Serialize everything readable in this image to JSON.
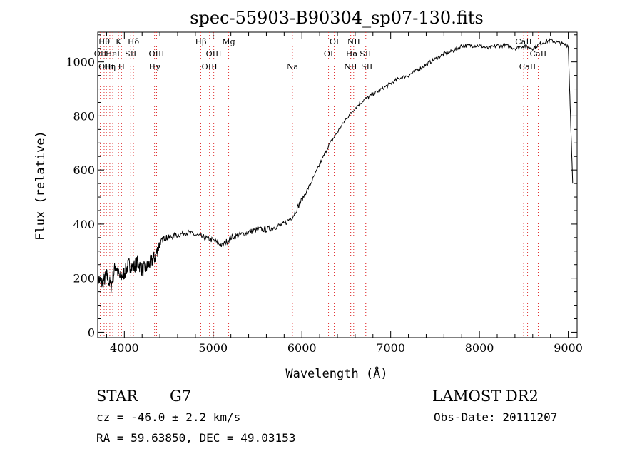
{
  "chart_data": {
    "type": "line",
    "title": "spec-55903-B90304_sp07-130.fits",
    "xlabel": "Wavelength (Å)",
    "ylabel": "Flux (relative)",
    "xlim": [
      3700,
      9100
    ],
    "ylim": [
      -20,
      1110
    ],
    "x_ticks": [
      4000,
      5000,
      6000,
      7000,
      8000,
      9000
    ],
    "y_ticks": [
      0,
      200,
      400,
      600,
      800,
      1000
    ],
    "grid": false,
    "series": [
      {
        "x": [
          3700,
          3750,
          3800,
          3850,
          3900,
          3950,
          4000,
          4050,
          4100,
          4150,
          4200,
          4250,
          4300,
          4350,
          4400,
          4450,
          4500,
          4600,
          4700,
          4800,
          4900,
          5000,
          5100,
          5200,
          5300,
          5400,
          5500,
          5600,
          5700,
          5800,
          5900,
          6000,
          6100,
          6200,
          6300,
          6400,
          6500,
          6600,
          6700,
          6800,
          6900,
          7000,
          7100,
          7200,
          7300,
          7400,
          7500,
          7600,
          7700,
          7800,
          7900,
          8000,
          8100,
          8200,
          8300,
          8400,
          8500,
          8600,
          8700,
          8800,
          8900,
          9000,
          9050
        ],
        "y": [
          200,
          180,
          210,
          170,
          250,
          200,
          220,
          250,
          240,
          260,
          230,
          240,
          260,
          280,
          330,
          350,
          350,
          360,
          370,
          360,
          350,
          340,
          320,
          350,
          360,
          370,
          380,
          380,
          390,
          400,
          430,
          490,
          550,
          620,
          690,
          740,
          790,
          830,
          860,
          880,
          900,
          920,
          940,
          950,
          970,
          990,
          1010,
          1030,
          1040,
          1060,
          1060,
          1060,
          1050,
          1060,
          1060,
          1050,
          1060,
          1050,
          1070,
          1080,
          1070,
          1060,
          550
        ]
      }
    ],
    "line_markers": [
      {
        "wl": 3729,
        "label": "OII",
        "row": 2
      },
      {
        "wl": 3772,
        "label": "Hθ",
        "row": 1
      },
      {
        "wl": 3798,
        "label": "OIII",
        "row": 3
      },
      {
        "wl": 3836,
        "label": "Hη",
        "row": 3
      },
      {
        "wl": 3869,
        "label": "HeI",
        "row": 2
      },
      {
        "wl": 3934,
        "label": "K",
        "row": 1
      },
      {
        "wl": 3968,
        "label": "H",
        "row": 3
      },
      {
        "wl": 4072,
        "label": "SII",
        "row": 2
      },
      {
        "wl": 4102,
        "label": "Hδ",
        "row": 1
      },
      {
        "wl": 4340,
        "label": "Hγ",
        "row": 3
      },
      {
        "wl": 4363,
        "label": "OIII",
        "row": 2
      },
      {
        "wl": 4861,
        "label": "Hβ",
        "row": 1
      },
      {
        "wl": 4959,
        "label": "OIII",
        "row": 3
      },
      {
        "wl": 5007,
        "label": "OIII",
        "row": 2
      },
      {
        "wl": 5175,
        "label": "Mg",
        "row": 1
      },
      {
        "wl": 5893,
        "label": "Na",
        "row": 3
      },
      {
        "wl": 6300,
        "label": "OI",
        "row": 2
      },
      {
        "wl": 6364,
        "label": "OI",
        "row": 1
      },
      {
        "wl": 6548,
        "label": "NII",
        "row": 3
      },
      {
        "wl": 6563,
        "label": "Hα",
        "row": 2
      },
      {
        "wl": 6583,
        "label": "NII",
        "row": 1
      },
      {
        "wl": 6716,
        "label": "SII",
        "row": 2
      },
      {
        "wl": 6731,
        "label": "SII",
        "row": 3
      },
      {
        "wl": 8498,
        "label": "CaII",
        "row": 1
      },
      {
        "wl": 8542,
        "label": "CaII",
        "row": 3
      },
      {
        "wl": 8662,
        "label": "CaII",
        "row": 2
      }
    ]
  },
  "info": {
    "object_class": "STAR",
    "subclass": "G7",
    "survey": "LAMOST DR2",
    "redshift": "cz = -46.0 ± 2.2 km/s",
    "obs_date": "Obs-Date: 20111207",
    "coords": "RA =  59.63850, DEC =  49.03153"
  }
}
